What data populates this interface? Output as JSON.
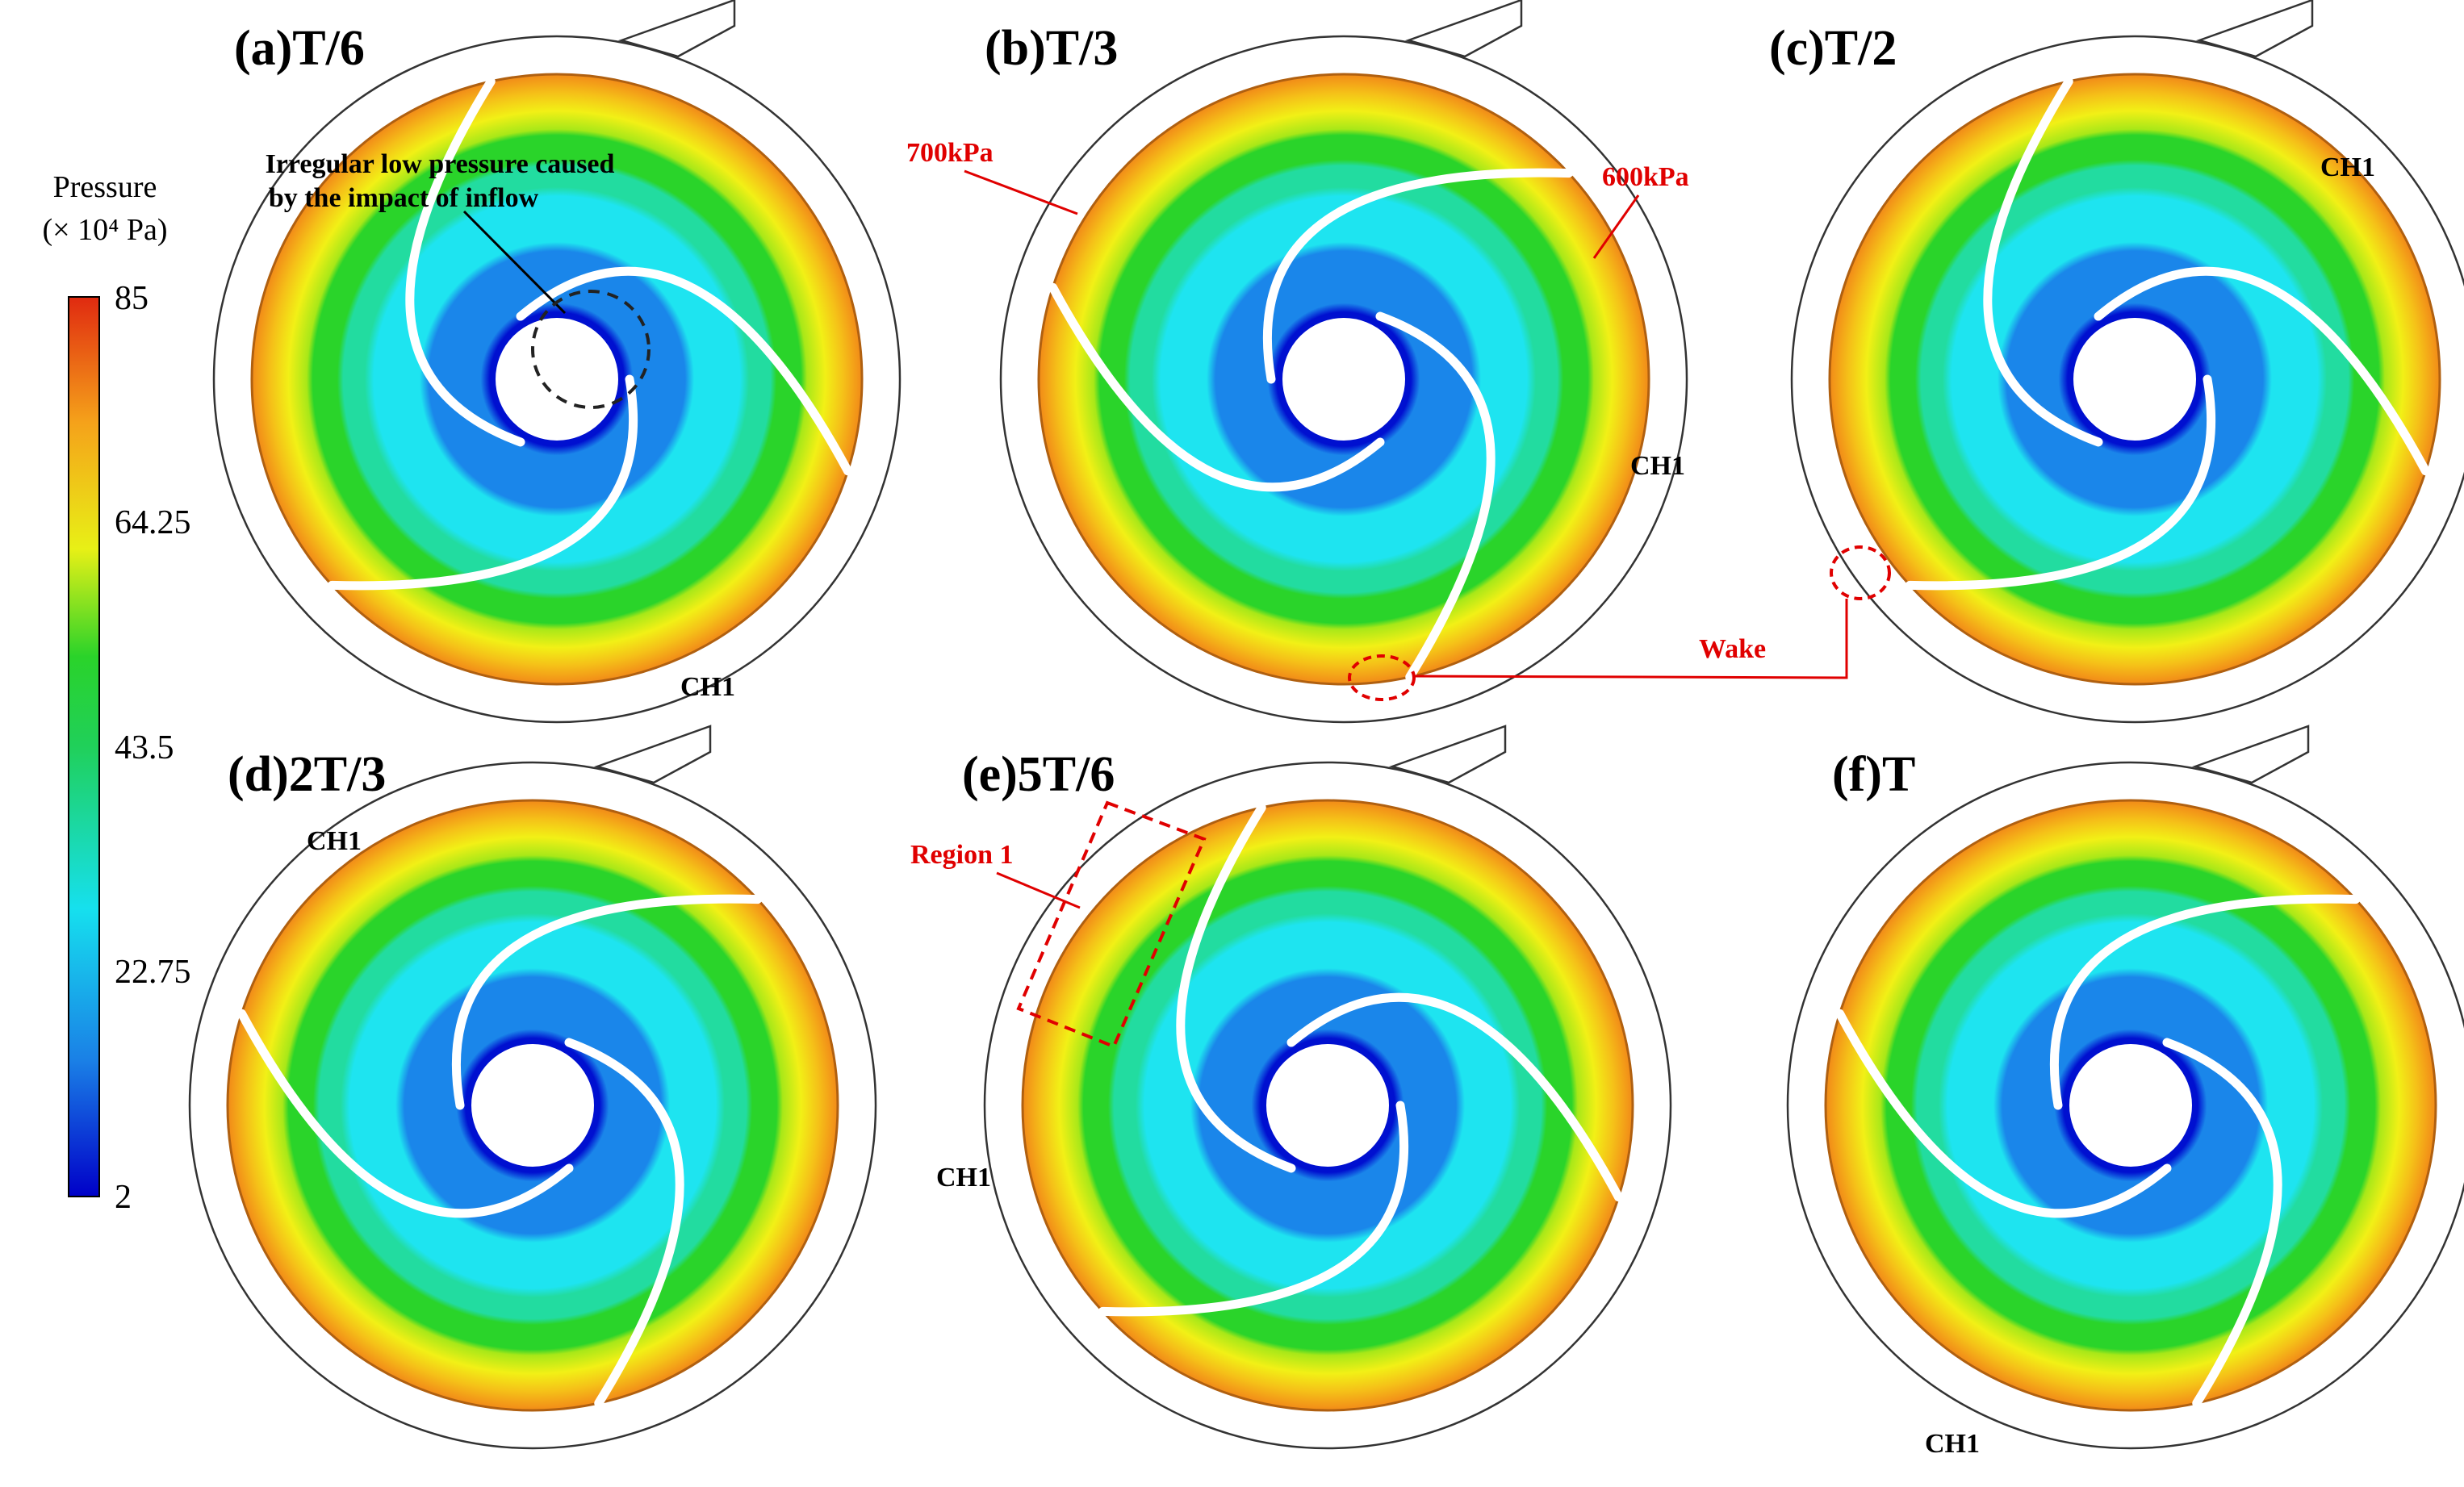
{
  "colorbar": {
    "title_line1": "Pressure",
    "title_line2": "(× 10⁴ Pa)",
    "ticks": [
      "85",
      "64.25",
      "43.5",
      "22.75",
      "2"
    ],
    "colors": [
      "#0000c8",
      "#1a7fe6",
      "#16e0ee",
      "#20d05a",
      "#2ad32a",
      "#e8f016",
      "#f5a21a",
      "#e02a10"
    ]
  },
  "panels": [
    {
      "title": "(a)T/6",
      "ch1_label": "CH1"
    },
    {
      "title": "(b)T/3",
      "ch1_label": "CH1"
    },
    {
      "title": "(c)T/2",
      "ch1_label": "CH1"
    },
    {
      "title": "(d)2T/3",
      "ch1_label": "CH1"
    },
    {
      "title": "(e)5T/6",
      "ch1_label": "CH1"
    },
    {
      "title": "(f)T",
      "ch1_label": "CH1"
    }
  ],
  "annotations": {
    "irregular_line1": "Irregular low pressure caused",
    "irregular_line2": "by the impact of inflow",
    "p700": "700kPa",
    "p600": "600kPa",
    "wake": "Wake",
    "region1": "Region 1"
  }
}
